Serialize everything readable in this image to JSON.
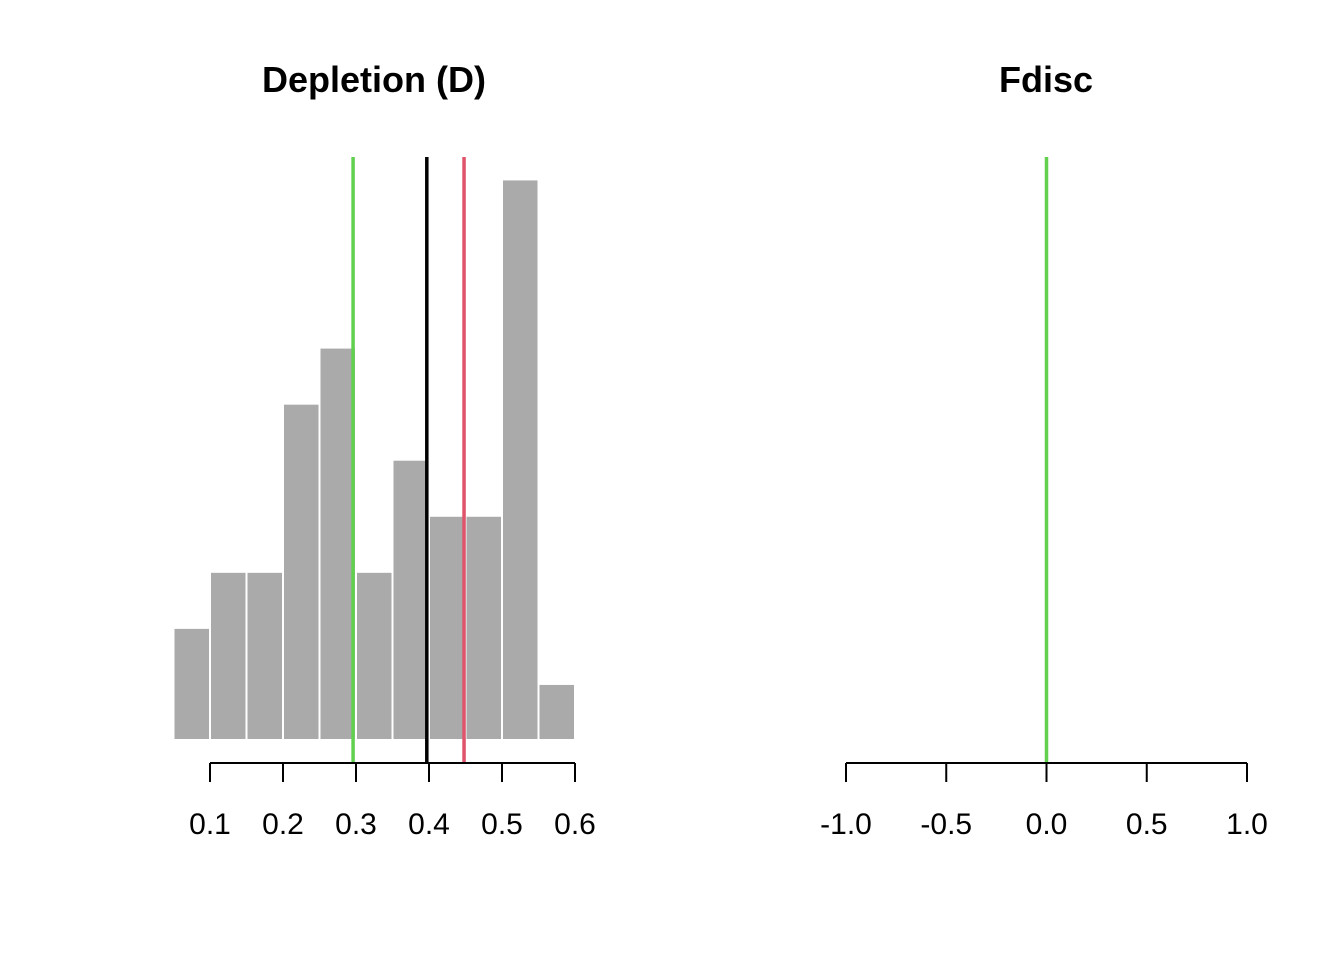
{
  "chart_data": [
    {
      "type": "histogram",
      "title": "Depletion (D)",
      "xlabel": "",
      "ylabel": "",
      "bins": [
        {
          "from": 0.05,
          "to": 0.1,
          "count": 2
        },
        {
          "from": 0.1,
          "to": 0.15,
          "count": 3
        },
        {
          "from": 0.15,
          "to": 0.2,
          "count": 3
        },
        {
          "from": 0.2,
          "to": 0.25,
          "count": 6
        },
        {
          "from": 0.25,
          "to": 0.3,
          "count": 7
        },
        {
          "from": 0.3,
          "to": 0.35,
          "count": 3
        },
        {
          "from": 0.35,
          "to": 0.4,
          "count": 5
        },
        {
          "from": 0.4,
          "to": 0.45,
          "count": 4
        },
        {
          "from": 0.45,
          "to": 0.5,
          "count": 4
        },
        {
          "from": 0.5,
          "to": 0.55,
          "count": 10
        },
        {
          "from": 0.55,
          "to": 0.6,
          "count": 1
        }
      ],
      "bar_color": "#AAAAAA",
      "xticks": [
        0.1,
        0.2,
        0.3,
        0.4,
        0.5,
        0.6
      ],
      "xtick_labels": [
        "0.1",
        "0.2",
        "0.3",
        "0.4",
        "0.5",
        "0.6"
      ],
      "xlim": [
        0.05,
        0.6
      ],
      "ylim": [
        0,
        10.4
      ],
      "grid": false,
      "y_axis_shown": false,
      "vlines": [
        {
          "x": 0.296,
          "color": "#61D04F"
        },
        {
          "x": 0.397,
          "color": "#000000"
        },
        {
          "x": 0.448,
          "color": "#DF536B"
        }
      ]
    },
    {
      "type": "histogram",
      "title": "Fdisc",
      "xlabel": "",
      "ylabel": "",
      "bins": [],
      "xticks": [
        -1.0,
        -0.5,
        0.0,
        0.5,
        1.0
      ],
      "xtick_labels": [
        "-1.0",
        "-0.5",
        "0.0",
        "0.5",
        "1.0"
      ],
      "xlim": [
        -1.0,
        1.0
      ],
      "grid": false,
      "y_axis_shown": false,
      "vlines": [
        {
          "x": 0.0,
          "color": "#61D04F"
        }
      ]
    }
  ]
}
